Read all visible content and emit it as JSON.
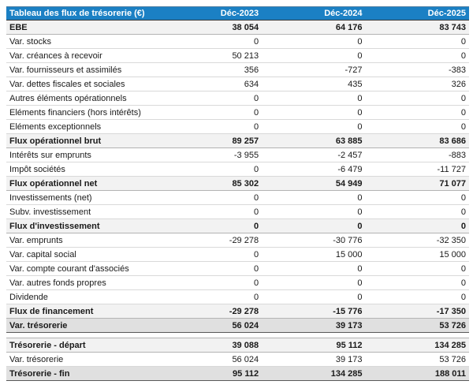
{
  "header": {
    "title": "Tableau des flux de trésorerie (€)",
    "columns": [
      "Déc-2023",
      "Déc-2024",
      "Déc-2025"
    ]
  },
  "colors": {
    "header_bg": "#1b80c4",
    "header_text": "#ffffff",
    "subtotal_row_bg": "#f2f2f2",
    "total_row_bg": "#e0e0e0",
    "row_separator": "#d9d9d9",
    "total_border": "#595959"
  },
  "rows": [
    {
      "label": "EBE",
      "values": [
        "38 054",
        "64 176",
        "83 743"
      ],
      "style": "subtotal"
    },
    {
      "label": "Var. stocks",
      "values": [
        "0",
        "0",
        "0"
      ],
      "style": "normal"
    },
    {
      "label": "Var. créances à recevoir",
      "values": [
        "50 213",
        "0",
        "0"
      ],
      "style": "normal"
    },
    {
      "label": "Var. fournisseurs et assimilés",
      "values": [
        "356",
        "-727",
        "-383"
      ],
      "style": "normal"
    },
    {
      "label": "Var. dettes fiscales et sociales",
      "values": [
        "634",
        "435",
        "326"
      ],
      "style": "normal"
    },
    {
      "label": "Autres éléments opérationnels",
      "values": [
        "0",
        "0",
        "0"
      ],
      "style": "normal"
    },
    {
      "label": "Eléments financiers (hors intérêts)",
      "values": [
        "0",
        "0",
        "0"
      ],
      "style": "normal"
    },
    {
      "label": "Eléments exceptionnels",
      "values": [
        "0",
        "0",
        "0"
      ],
      "style": "normal"
    },
    {
      "label": "Flux opérationnel brut",
      "values": [
        "89 257",
        "63 885",
        "83 686"
      ],
      "style": "subtotal"
    },
    {
      "label": "Intérêts sur emprunts",
      "values": [
        "-3 955",
        "-2 457",
        "-883"
      ],
      "style": "normal"
    },
    {
      "label": "Impôt sociétés",
      "values": [
        "0",
        "-6 479",
        "-11 727"
      ],
      "style": "normal"
    },
    {
      "label": "Flux opérationnel net",
      "values": [
        "85 302",
        "54 949",
        "71 077"
      ],
      "style": "subtotal"
    },
    {
      "label": "Investissements (net)",
      "values": [
        "0",
        "0",
        "0"
      ],
      "style": "normal"
    },
    {
      "label": "Subv. investissement",
      "values": [
        "0",
        "0",
        "0"
      ],
      "style": "normal"
    },
    {
      "label": "Flux d'investissement",
      "values": [
        "0",
        "0",
        "0"
      ],
      "style": "subtotal"
    },
    {
      "label": "Var. emprunts",
      "values": [
        "-29 278",
        "-30 776",
        "-32 350"
      ],
      "style": "normal"
    },
    {
      "label": "Var. capital social",
      "values": [
        "0",
        "15 000",
        "15 000"
      ],
      "style": "normal"
    },
    {
      "label": "Var. compte courant d'associés",
      "values": [
        "0",
        "0",
        "0"
      ],
      "style": "normal"
    },
    {
      "label": "Var. autres fonds propres",
      "values": [
        "0",
        "0",
        "0"
      ],
      "style": "normal"
    },
    {
      "label": "Dividende",
      "values": [
        "0",
        "0",
        "0"
      ],
      "style": "normal"
    },
    {
      "label": "Flux de financement",
      "values": [
        "-29 278",
        "-15 776",
        "-17 350"
      ],
      "style": "subtotal"
    },
    {
      "label": "Var. trésorerie",
      "values": [
        "56 024",
        "39 173",
        "53 726"
      ],
      "style": "total"
    },
    {
      "label": "",
      "values": [
        "",
        "",
        ""
      ],
      "style": "gap"
    },
    {
      "label": "Trésorerie - départ",
      "values": [
        "39 088",
        "95 112",
        "134 285"
      ],
      "style": "subtotal"
    },
    {
      "label": "Var. trésorerie",
      "values": [
        "56 024",
        "39 173",
        "53 726"
      ],
      "style": "normal"
    },
    {
      "label": "Trésorerie - fin",
      "values": [
        "95 112",
        "134 285",
        "188 011"
      ],
      "style": "total"
    }
  ]
}
